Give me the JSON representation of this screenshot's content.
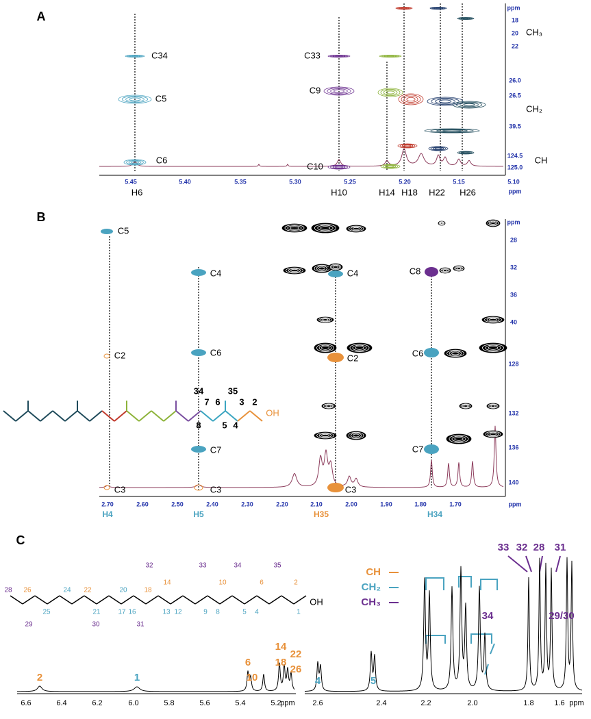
{
  "panel_a": {
    "label": "A",
    "x_ticks": [
      "5.45",
      "5.40",
      "5.35",
      "5.30",
      "5.25",
      "5.20",
      "5.15",
      "5.10"
    ],
    "x_unit": "ppm",
    "y_unit": "ppm",
    "y_ticks": [
      "18",
      "20",
      "22",
      "26.0",
      "26.5",
      "39.5",
      "124.5",
      "125.0"
    ],
    "groups": [
      "CH₃",
      "CH₂",
      "CH"
    ],
    "carbon_labels": [
      "C34",
      "C5",
      "C6",
      "C33",
      "C9",
      "C10"
    ],
    "proton_labels": [
      "H6",
      "H10",
      "H14",
      "H18",
      "H22",
      "H26"
    ]
  },
  "panel_b": {
    "label": "B",
    "x_ticks": [
      "2.70",
      "2.60",
      "2.50",
      "2.40",
      "2.30",
      "2.20",
      "2.10",
      "2.00",
      "1.90",
      "1.80",
      "1.70"
    ],
    "x_unit": "ppm",
    "y_unit": "ppm",
    "y_ticks": [
      "28",
      "32",
      "36",
      "40",
      "128",
      "132",
      "136",
      "140"
    ],
    "carbon_labels": [
      "C5",
      "C2",
      "C3",
      "C4",
      "C6",
      "C7",
      "C3",
      "C4",
      "C2",
      "C3",
      "C8",
      "C6",
      "C7"
    ],
    "proton_labels": [
      "H4",
      "H5",
      "H35",
      "H34"
    ],
    "structure_labels": [
      "34",
      "35",
      "7",
      "6",
      "3",
      "2",
      "8",
      "5",
      "4",
      "OH"
    ]
  },
  "panel_c": {
    "label": "C",
    "left_x_ticks": [
      "6.6",
      "6.4",
      "6.2",
      "6.0",
      "5.8",
      "5.6",
      "5.4",
      "5.2"
    ],
    "left_x_unit": "ppm",
    "right_x_ticks": [
      "2.6",
      "2.4",
      "2.2",
      "2.0",
      "1.8",
      "1.6"
    ],
    "right_x_unit": "ppm",
    "legend": [
      "CH",
      "CH₂",
      "CH₃"
    ],
    "peak_labels": [
      "2",
      "1",
      "6",
      "10",
      "14",
      "18",
      "22",
      "26",
      "4",
      "5",
      "33",
      "32",
      "28",
      "31",
      "34",
      "29/30"
    ],
    "atom_numbers": [
      "28",
      "26",
      "24",
      "22",
      "20",
      "18",
      "32",
      "14",
      "33",
      "10",
      "34",
      "6",
      "35",
      "2",
      "25",
      "21",
      "17",
      "16",
      "13",
      "12",
      "9",
      "8",
      "5",
      "4",
      "1",
      "29",
      "30",
      "31"
    ],
    "hydroxyl": "OH"
  }
}
